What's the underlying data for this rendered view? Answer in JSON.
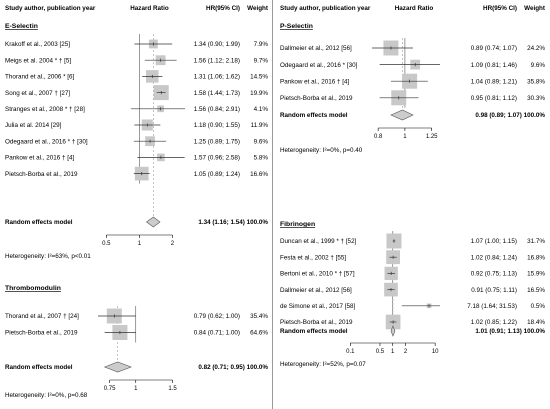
{
  "headers": {
    "study": "Study author, publication year",
    "hazard_ratio": "Hazard Ratio",
    "hr_ci": "HR(95% CI)",
    "weight": "Weight"
  },
  "colors": {
    "box": "#c8c8c8",
    "line": "#333333",
    "diamond": "#cccccc",
    "divider": "#999999"
  },
  "chart_data": [
    {
      "type": "forest",
      "title": "E-Selectin",
      "xticks": [
        0.5,
        1,
        2
      ],
      "studies": [
        {
          "label": "Krakoff et al., 2003 [25]",
          "hr": 1.34,
          "lo": 0.9,
          "hi": 1.99,
          "weight": "7.9%",
          "ci_text": "1.34 (0.90; 1.99)"
        },
        {
          "label": "Meigs et al. 2004 * † [5]",
          "hr": 1.56,
          "lo": 1.12,
          "hi": 2.18,
          "weight": "9.7%",
          "ci_text": "1.56 (1.12; 2.18)"
        },
        {
          "label": "Thorand et al., 2006 * [6]",
          "hr": 1.31,
          "lo": 1.06,
          "hi": 1.62,
          "weight": "14.5%",
          "ci_text": "1.31 (1.06; 1.62)"
        },
        {
          "label": "Song et al., 2007 † [27]",
          "hr": 1.58,
          "lo": 1.44,
          "hi": 1.73,
          "weight": "19.9%",
          "ci_text": "1.58 (1.44; 1.73)"
        },
        {
          "label": "Stranges et al., 2008 * † [28]",
          "hr": 1.56,
          "lo": 0.84,
          "hi": 2.91,
          "weight": "4.1%",
          "ci_text": "1.56 (0.84; 2.91)"
        },
        {
          "label": "Julia et al. 2014 [29]",
          "hr": 1.18,
          "lo": 0.9,
          "hi": 1.55,
          "weight": "11.9%",
          "ci_text": "1.18 (0.90; 1.55)"
        },
        {
          "label": "Odegaard et al., 2016 * † [30]",
          "hr": 1.25,
          "lo": 0.89,
          "hi": 1.75,
          "weight": "9.6%",
          "ci_text": "1.25 (0.89; 1.75)"
        },
        {
          "label": "Pankow et al., 2016 † [4]",
          "hr": 1.57,
          "lo": 0.96,
          "hi": 2.58,
          "weight": "5.8%",
          "ci_text": "1.57 (0.96; 2.58)"
        },
        {
          "label": "Pietsch-Borba et al., 2019",
          "hr": 1.05,
          "lo": 0.89,
          "hi": 1.24,
          "weight": "16.6%",
          "ci_text": "1.05 (0.89; 1.24)"
        }
      ],
      "pooled": {
        "label": "Random effects model",
        "hr": 1.34,
        "lo": 1.16,
        "hi": 1.54,
        "text": "1.34 (1.16; 1.54) 100.0%"
      },
      "heterogeneity": "Heterogeneity: I²=63%, p<0.01"
    },
    {
      "type": "forest",
      "title": "Thrombomodulin",
      "xticks": [
        0.75,
        1,
        1.5
      ],
      "studies": [
        {
          "label": "Thorand et al., 2007 † [24]",
          "hr": 0.79,
          "lo": 0.62,
          "hi": 1.0,
          "weight": "35.4%",
          "ci_text": "0.79 (0.62; 1.00)"
        },
        {
          "label": "Pietsch-Borba et al., 2019",
          "hr": 0.84,
          "lo": 0.71,
          "hi": 1.0,
          "weight": "64.6%",
          "ci_text": "0.84 (0.71; 1.00)"
        }
      ],
      "pooled": {
        "label": "Random effects model",
        "hr": 0.82,
        "lo": 0.71,
        "hi": 0.95,
        "text": "0.82 (0.71; 0.95) 100.0%"
      },
      "heterogeneity": "Heterogeneity: I²=0%, p=0.68"
    },
    {
      "type": "forest",
      "title": "P-Selectin",
      "xticks": [
        0.8,
        1,
        1.25
      ],
      "studies": [
        {
          "label": "Dallmeier et al., 2012 [56]",
          "hr": 0.89,
          "lo": 0.74,
          "hi": 1.07,
          "weight": "24.2%",
          "ci_text": "0.89 (0.74; 1.07)"
        },
        {
          "label": "Odegaard et al., 2016 * [30]",
          "hr": 1.09,
          "lo": 0.81,
          "hi": 1.46,
          "weight": "9.6%",
          "ci_text": "1.09 (0.81; 1.46)"
        },
        {
          "label": "Pankow et al., 2016 † [4]",
          "hr": 1.04,
          "lo": 0.89,
          "hi": 1.21,
          "weight": "35.8%",
          "ci_text": "1.04 (0.89; 1.21)"
        },
        {
          "label": "Pietsch-Borba et al., 2019",
          "hr": 0.95,
          "lo": 0.81,
          "hi": 1.12,
          "weight": "30.3%",
          "ci_text": "0.95 (0.81; 1.12)"
        }
      ],
      "pooled": {
        "label": "Random effects model",
        "hr": 0.98,
        "lo": 0.89,
        "hi": 1.07,
        "text": "0.98 (0.89; 1.07) 100.0%"
      },
      "heterogeneity": "Heterogeneity: I²=0%, p=0.40"
    },
    {
      "type": "forest",
      "title": "Fibrinogen",
      "xticks": [
        0.1,
        0.5,
        1,
        2,
        10
      ],
      "xticklabels": [
        "0.1",
        "0.5",
        "1",
        "2",
        "10"
      ],
      "studies": [
        {
          "label": "Duncan et al., 1999 * † [52]",
          "hr": 1.07,
          "lo": 1.0,
          "hi": 1.15,
          "weight": "31.7%",
          "ci_text": "1.07 (1.00; 1.15)"
        },
        {
          "label": "Festa et al., 2002 † [55]",
          "hr": 1.02,
          "lo": 0.84,
          "hi": 1.24,
          "weight": "16.8%",
          "ci_text": "1.02 (0.84; 1.24)"
        },
        {
          "label": "Bertoni et al., 2010 * † [57]",
          "hr": 0.92,
          "lo": 0.75,
          "hi": 1.13,
          "weight": "15.9%",
          "ci_text": "0.92 (0.75; 1.13)"
        },
        {
          "label": "Dallmeier et al., 2012 [56]",
          "hr": 0.91,
          "lo": 0.75,
          "hi": 1.11,
          "weight": "16.5%",
          "ci_text": "0.91 (0.75; 1.11)"
        },
        {
          "label": "de Simone et al., 2017 [58]",
          "hr": 7.18,
          "lo": 1.64,
          "hi": 31.53,
          "weight": "0.5%",
          "ci_text": "7.18 (1.64; 31.53)"
        },
        {
          "label": "Pietsch-Borba et al., 2019",
          "hr": 1.02,
          "lo": 0.85,
          "hi": 1.22,
          "weight": "18.4%",
          "ci_text": "1.02 (0.85; 1.22)"
        }
      ],
      "pooled": {
        "label": "Random effects model",
        "hr": 1.01,
        "lo": 0.91,
        "hi": 1.13,
        "text": "1.01 (0.91; 1.13) 100.0%"
      },
      "heterogeneity": "Heterogeneity: I²=52%, p=0.07"
    }
  ]
}
